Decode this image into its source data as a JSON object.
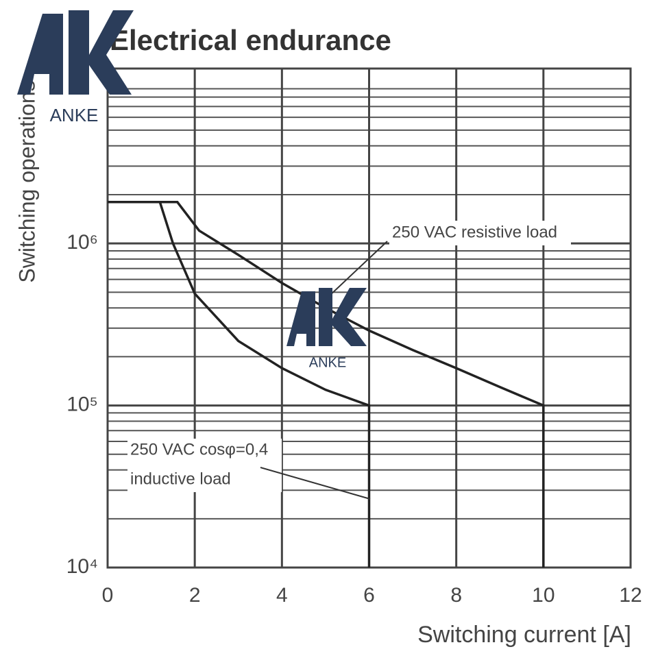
{
  "chart_data": {
    "type": "line",
    "title": "Electrical endurance",
    "x_label": "Switching current [A]",
    "y_label": "Switching operations",
    "xlim": [
      0,
      12
    ],
    "xticks": [
      0,
      2,
      4,
      6,
      8,
      10,
      12
    ],
    "ylim": [
      10000,
      12000000
    ],
    "yticks": [
      {
        "value": 10000,
        "label": "10⁴"
      },
      {
        "value": 100000,
        "label": "10⁵"
      },
      {
        "value": 1000000,
        "label": "10⁶"
      }
    ],
    "log_y": true,
    "grid": true,
    "minor_grid": true,
    "series": [
      {
        "color": "#222222",
        "x": [
          0,
          1.6,
          2.1,
          3,
          4,
          5,
          6,
          7,
          8,
          9,
          10,
          10
        ],
        "values": [
          1800000,
          1800000,
          1200000,
          850000,
          570000,
          400000,
          290000,
          220000,
          170000,
          130000,
          100000,
          10000
        ]
      },
      {
        "color": "#222222",
        "x": [
          0,
          1.2,
          1.5,
          2,
          3,
          4,
          5,
          6,
          6
        ],
        "values": [
          1800000,
          1800000,
          1000000,
          490000,
          250000,
          170000,
          125000,
          100000,
          10000
        ]
      }
    ],
    "annotations": [
      "250 VAC resistive load",
      "250 VAC cosφ=0,4",
      "inductive load"
    ],
    "watermark": "ANKE"
  }
}
